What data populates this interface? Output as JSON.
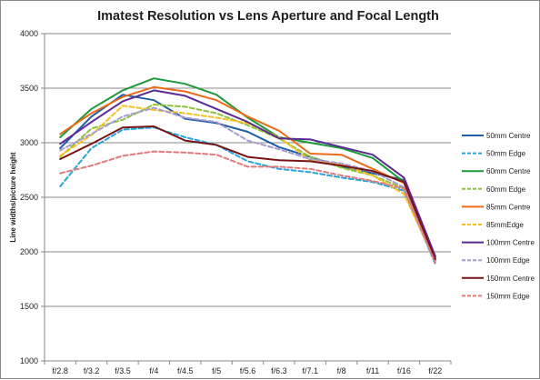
{
  "chart_data": {
    "type": "line",
    "title": "Imatest Resolution vs Lens Aperture and Focal Length",
    "ylabel": "Line widths/picture height",
    "xlabel": "",
    "categories": [
      "f/2.8",
      "f/3.2",
      "f/3.5",
      "f/4",
      "f/4.5",
      "f/5",
      "f/5.6",
      "f/6.3",
      "f/7.1",
      "f/8",
      "f/11",
      "f/16",
      "f/22"
    ],
    "ylim": [
      1000,
      4000
    ],
    "yticks": [
      "1000",
      "1500",
      "2000",
      "2500",
      "3000",
      "3500",
      "4000"
    ],
    "grid": true,
    "legend": "right",
    "series": [
      {
        "name": "50mm Centre",
        "color": "#1f5fa8",
        "dash": false,
        "values": [
          2950,
          3240,
          3440,
          3390,
          3220,
          3180,
          3100,
          2960,
          2870,
          2780,
          2720,
          2660,
          1940
        ]
      },
      {
        "name": "50mm Edge",
        "color": "#2aa3d8",
        "dash": true,
        "values": [
          2600,
          2950,
          3120,
          3140,
          3050,
          2980,
          2830,
          2760,
          2730,
          2680,
          2640,
          2560,
          1890
        ]
      },
      {
        "name": "60mm Centre",
        "color": "#1c9a3a",
        "dash": false,
        "values": [
          3050,
          3310,
          3480,
          3590,
          3540,
          3440,
          3230,
          3050,
          3000,
          2950,
          2860,
          2640,
          1950
        ]
      },
      {
        "name": "60mm Edge",
        "color": "#8cc43e",
        "dash": true,
        "values": [
          2870,
          3130,
          3210,
          3350,
          3330,
          3270,
          3160,
          3040,
          2870,
          2770,
          2700,
          2580,
          1920
        ]
      },
      {
        "name": "85mm Centre",
        "color": "#ee6a1b",
        "dash": false,
        "values": [
          3080,
          3270,
          3420,
          3510,
          3470,
          3390,
          3240,
          3110,
          2900,
          2890,
          2760,
          2630,
          1930
        ]
      },
      {
        "name": "85mmEdge",
        "color": "#f7bf20",
        "dash": true,
        "values": [
          2880,
          3070,
          3340,
          3300,
          3270,
          3230,
          3180,
          3050,
          2840,
          2800,
          2700,
          2530,
          1910
        ]
      },
      {
        "name": "100mm Centre",
        "color": "#5a2a95",
        "dash": false,
        "values": [
          2990,
          3190,
          3380,
          3480,
          3430,
          3310,
          3190,
          3040,
          3030,
          2960,
          2890,
          2680,
          1960
        ]
      },
      {
        "name": "100mm Edge",
        "color": "#a79ad0",
        "dash": true,
        "values": [
          2930,
          3080,
          3240,
          3320,
          3230,
          3190,
          3020,
          2940,
          2850,
          2810,
          2740,
          2590,
          1900
        ]
      },
      {
        "name": "150mm Centre",
        "color": "#7a1414",
        "dash": false,
        "values": [
          2850,
          2990,
          3140,
          3150,
          3020,
          2980,
          2870,
          2840,
          2830,
          2790,
          2740,
          2640,
          1930
        ]
      },
      {
        "name": "150mm Edge",
        "color": "#e07b7b",
        "dash": true,
        "values": [
          2720,
          2790,
          2880,
          2920,
          2910,
          2890,
          2780,
          2780,
          2760,
          2700,
          2650,
          2580,
          1900
        ]
      }
    ]
  }
}
